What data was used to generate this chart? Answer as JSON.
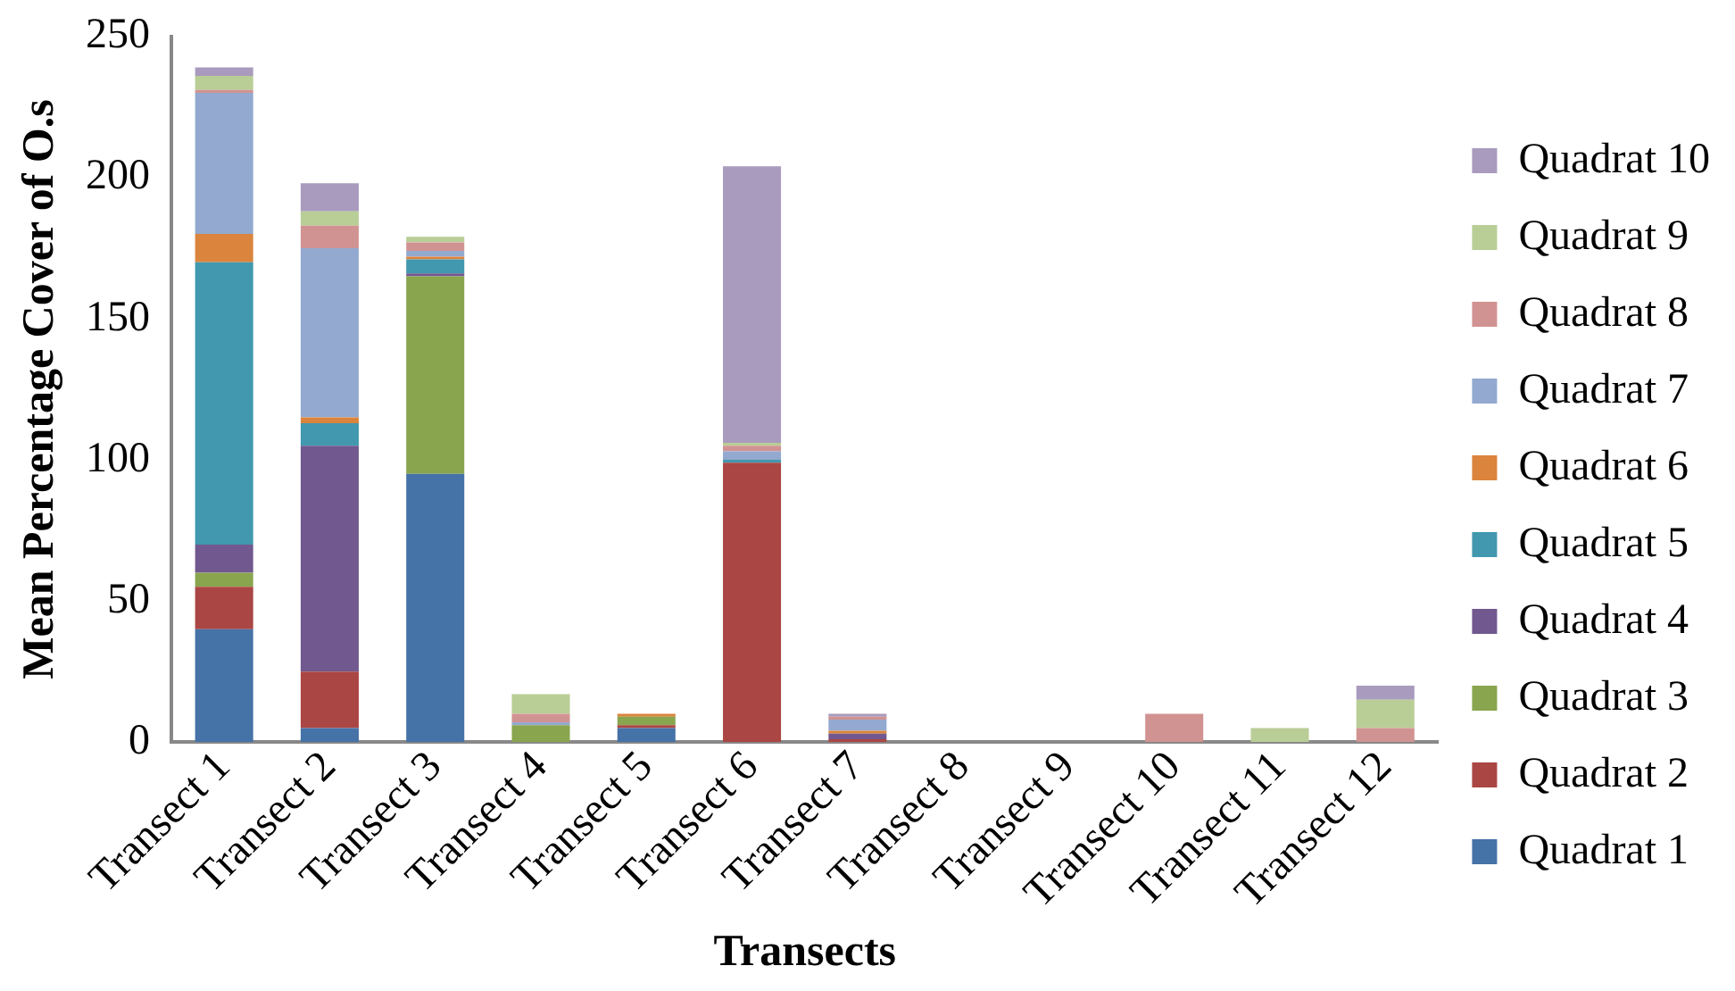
{
  "chart_data": {
    "type": "bar",
    "stacked": true,
    "xlabel": "Transects",
    "ylabel": "Mean Percentage Cover of O.s",
    "categories": [
      "Transect 1",
      "Transect 2",
      "Transect 3",
      "Transect 4",
      "Transect 5",
      "Transect 6",
      "Transect 7",
      "Transect 8",
      "Transect 9",
      "Transect 10",
      "Transect 11",
      "Transect 12"
    ],
    "ylim": [
      0,
      250
    ],
    "yticks": [
      0,
      50,
      100,
      150,
      200,
      250
    ],
    "grid": false,
    "legend": "right",
    "series": [
      {
        "name": "Quadrat 1",
        "color": "#4572a7",
        "values": [
          40,
          5,
          95,
          0,
          5,
          0,
          0,
          0,
          0,
          0,
          0,
          0
        ]
      },
      {
        "name": "Quadrat 2",
        "color": "#aa4643",
        "values": [
          15,
          20,
          0,
          0,
          1,
          99,
          1,
          0,
          0,
          0,
          0,
          0
        ]
      },
      {
        "name": "Quadrat 3",
        "color": "#89a54e",
        "values": [
          5,
          0,
          70,
          6,
          3,
          0,
          0,
          0,
          0,
          0,
          0,
          0
        ]
      },
      {
        "name": "Quadrat 4",
        "color": "#71588f",
        "values": [
          10,
          80,
          1,
          0,
          0,
          0,
          2,
          0,
          0,
          0,
          0,
          0
        ]
      },
      {
        "name": "Quadrat 5",
        "color": "#4198af",
        "values": [
          100,
          8,
          5,
          0,
          0,
          1,
          0,
          0,
          0,
          0,
          0,
          0
        ]
      },
      {
        "name": "Quadrat 6",
        "color": "#db843d",
        "values": [
          10,
          2,
          1,
          0,
          1,
          0,
          1,
          0,
          0,
          0,
          0,
          0
        ]
      },
      {
        "name": "Quadrat 7",
        "color": "#93a9cf",
        "values": [
          50,
          60,
          2,
          1,
          0,
          3,
          4,
          0,
          0,
          0,
          0,
          0
        ]
      },
      {
        "name": "Quadrat 8",
        "color": "#d19392",
        "values": [
          1,
          8,
          3,
          3,
          0,
          2,
          1,
          0,
          0,
          10,
          0,
          5
        ]
      },
      {
        "name": "Quadrat 9",
        "color": "#b9cd96",
        "values": [
          5,
          5,
          2,
          7,
          0,
          1,
          0,
          0,
          0,
          0,
          5,
          10
        ]
      },
      {
        "name": "Quadrat 10",
        "color": "#a99bbd",
        "values": [
          3,
          10,
          0,
          0,
          0,
          98,
          1,
          0,
          0,
          0,
          0,
          5
        ]
      }
    ]
  }
}
